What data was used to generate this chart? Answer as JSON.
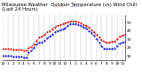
{
  "title": "Milwaukee Weather  Outdoor Temperature (vs) Wind Chill (Last 24 Hours)",
  "temp_color": "#cc0000",
  "chill_color": "#0000cc",
  "background_color": "#ffffff",
  "plot_bg_color": "#ffffff",
  "grid_color": "#aaaaaa",
  "x_values": [
    0,
    1,
    2,
    3,
    4,
    5,
    6,
    7,
    8,
    9,
    10,
    11,
    12,
    13,
    14,
    15,
    16,
    17,
    18,
    19,
    20,
    21,
    22,
    23,
    24,
    25,
    26,
    27,
    28,
    29,
    30,
    31,
    32,
    33,
    34,
    35,
    36,
    37,
    38,
    39,
    40,
    41,
    42,
    43,
    44,
    45,
    46,
    47
  ],
  "temp_values": [
    18,
    18,
    18,
    18,
    17,
    17,
    17,
    17,
    16,
    16,
    20,
    21,
    24,
    28,
    32,
    33,
    35,
    38,
    40,
    42,
    44,
    46,
    47,
    48,
    49,
    50,
    51,
    51,
    51,
    50,
    49,
    47,
    46,
    44,
    41,
    38,
    35,
    32,
    29,
    27,
    26,
    26,
    27,
    27,
    30,
    33,
    34,
    35
  ],
  "chill_values": [
    10,
    10,
    10,
    10,
    9,
    9,
    9,
    9,
    8,
    8,
    14,
    16,
    20,
    24,
    26,
    26,
    28,
    31,
    33,
    35,
    38,
    40,
    41,
    42,
    43,
    46,
    48,
    48,
    48,
    47,
    46,
    44,
    43,
    40,
    37,
    34,
    30,
    26,
    22,
    19,
    18,
    18,
    19,
    19,
    22,
    25,
    26,
    27
  ],
  "ylim": [
    5,
    58
  ],
  "yticks": [
    10,
    20,
    30,
    40,
    50
  ],
  "xlim": [
    0,
    47
  ],
  "xtick_labels": [
    "12",
    "1",
    "2",
    "3",
    "4",
    "5",
    "6",
    "7",
    "8",
    "9",
    "10",
    "11",
    "12",
    "1",
    "2",
    "3",
    "4",
    "5",
    "6",
    "7",
    "8",
    "9",
    "10",
    "11"
  ],
  "xtick_positions": [
    0,
    2,
    4,
    6,
    8,
    10,
    12,
    14,
    16,
    18,
    20,
    22,
    24,
    26,
    28,
    30,
    32,
    34,
    36,
    38,
    40,
    42,
    44,
    46
  ],
  "vgrid_positions": [
    0,
    2,
    4,
    6,
    8,
    10,
    12,
    14,
    16,
    18,
    20,
    22,
    24,
    26,
    28,
    30,
    32,
    34,
    36,
    38,
    40,
    42,
    44,
    46
  ],
  "title_fontsize": 3.8,
  "tick_fontsize": 3.2,
  "legend_fontsize": 3.2,
  "linewidth": 0.8,
  "markersize": 1.0
}
